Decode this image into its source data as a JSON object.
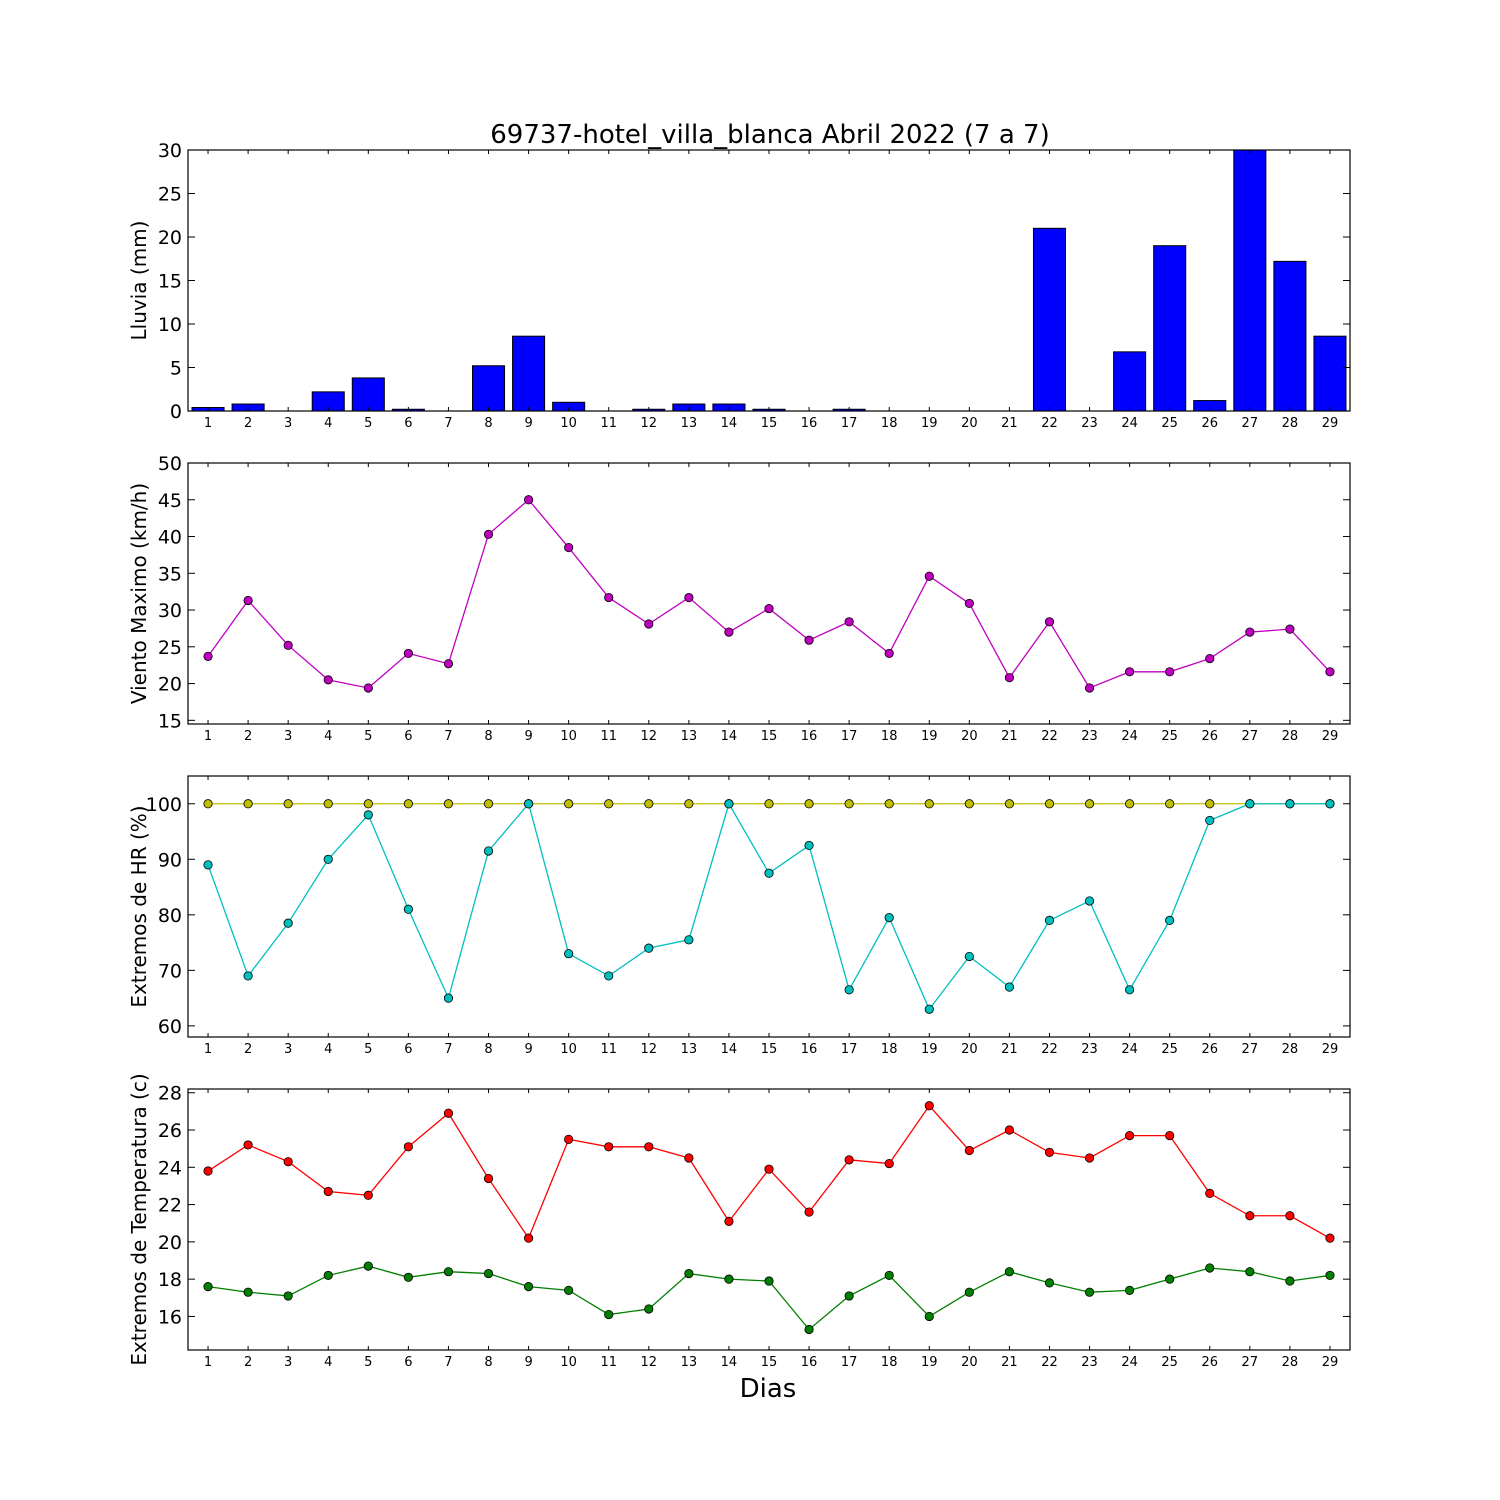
{
  "title": "69737-hotel_villa_blanca Abril 2022  (7 a 7)",
  "xlabel": "Dias",
  "days": [
    1,
    2,
    3,
    4,
    5,
    6,
    7,
    8,
    9,
    10,
    11,
    12,
    13,
    14,
    15,
    16,
    17,
    18,
    19,
    20,
    21,
    22,
    23,
    24,
    25,
    26,
    27,
    28,
    29
  ],
  "colors": {
    "rain": "#0000ff",
    "wind": "#bf00bf",
    "hr_max": "#bfbf00",
    "hr_min": "#00bfbf",
    "temp_max": "#ff0000",
    "temp_min": "#007f00"
  },
  "chart_data": [
    {
      "type": "bar",
      "ylabel": "Lluvia (mm)",
      "ylim": [
        0,
        30
      ],
      "yticks": [
        0,
        5,
        10,
        15,
        20,
        25,
        30
      ],
      "series": [
        {
          "values": [
            0.4,
            0.8,
            0,
            2.2,
            3.8,
            0.2,
            0,
            5.2,
            8.6,
            1.0,
            0,
            0.2,
            0.8,
            0.8,
            0.2,
            0,
            0.2,
            0,
            0,
            0,
            0,
            21.0,
            0,
            6.8,
            19.0,
            1.2,
            30.0,
            17.2,
            8.6
          ]
        }
      ]
    },
    {
      "type": "line",
      "ylabel": "Viento Maximo (km/h)",
      "ylim": [
        14.5,
        50
      ],
      "yticks": [
        15,
        20,
        25,
        30,
        35,
        40,
        45,
        50
      ],
      "series": [
        {
          "values": [
            23.7,
            31.3,
            25.2,
            20.5,
            19.4,
            24.1,
            22.7,
            40.3,
            45.0,
            38.5,
            31.7,
            28.1,
            31.7,
            27.0,
            30.2,
            25.9,
            28.4,
            24.1,
            34.6,
            30.9,
            20.8,
            28.4,
            19.4,
            21.6,
            21.6,
            23.4,
            27.0,
            27.4,
            21.6
          ]
        }
      ]
    },
    {
      "type": "line",
      "ylabel": "Extremos de HR (%)",
      "ylim": [
        58,
        105
      ],
      "yticks": [
        60,
        70,
        80,
        90,
        100
      ],
      "series": [
        {
          "values": [
            100,
            100,
            100,
            100,
            100,
            100,
            100,
            100,
            100,
            100,
            100,
            100,
            100,
            100,
            100,
            100,
            100,
            100,
            100,
            100,
            100,
            100,
            100,
            100,
            100,
            100,
            100,
            100,
            100
          ]
        },
        {
          "values": [
            89,
            69,
            78.5,
            90,
            98,
            81,
            65,
            91.5,
            100,
            73,
            69,
            74,
            75.5,
            100,
            87.5,
            92.5,
            66.5,
            79.5,
            63,
            72.5,
            67,
            79,
            82.5,
            66.5,
            79,
            97,
            100,
            100,
            100
          ]
        }
      ]
    },
    {
      "type": "line",
      "ylabel": "Extremos de Temperatura (c)",
      "ylim": [
        14.2,
        28.2
      ],
      "yticks": [
        16,
        18,
        20,
        22,
        24,
        26,
        28
      ],
      "series": [
        {
          "values": [
            23.8,
            25.2,
            24.3,
            22.7,
            22.5,
            25.1,
            26.9,
            23.4,
            20.2,
            25.5,
            25.1,
            25.1,
            24.5,
            21.1,
            23.9,
            21.6,
            24.4,
            24.2,
            27.3,
            24.9,
            26.0,
            24.8,
            24.5,
            25.7,
            25.7,
            22.6,
            21.4,
            21.4,
            20.2
          ]
        },
        {
          "values": [
            17.6,
            17.3,
            17.1,
            18.2,
            18.7,
            18.1,
            18.4,
            18.3,
            17.6,
            17.4,
            16.1,
            16.4,
            18.3,
            18.0,
            17.9,
            15.3,
            17.1,
            18.2,
            16.0,
            17.3,
            18.4,
            17.8,
            17.3,
            17.4,
            18.0,
            18.6,
            18.4,
            17.9,
            18.2
          ]
        }
      ]
    }
  ]
}
